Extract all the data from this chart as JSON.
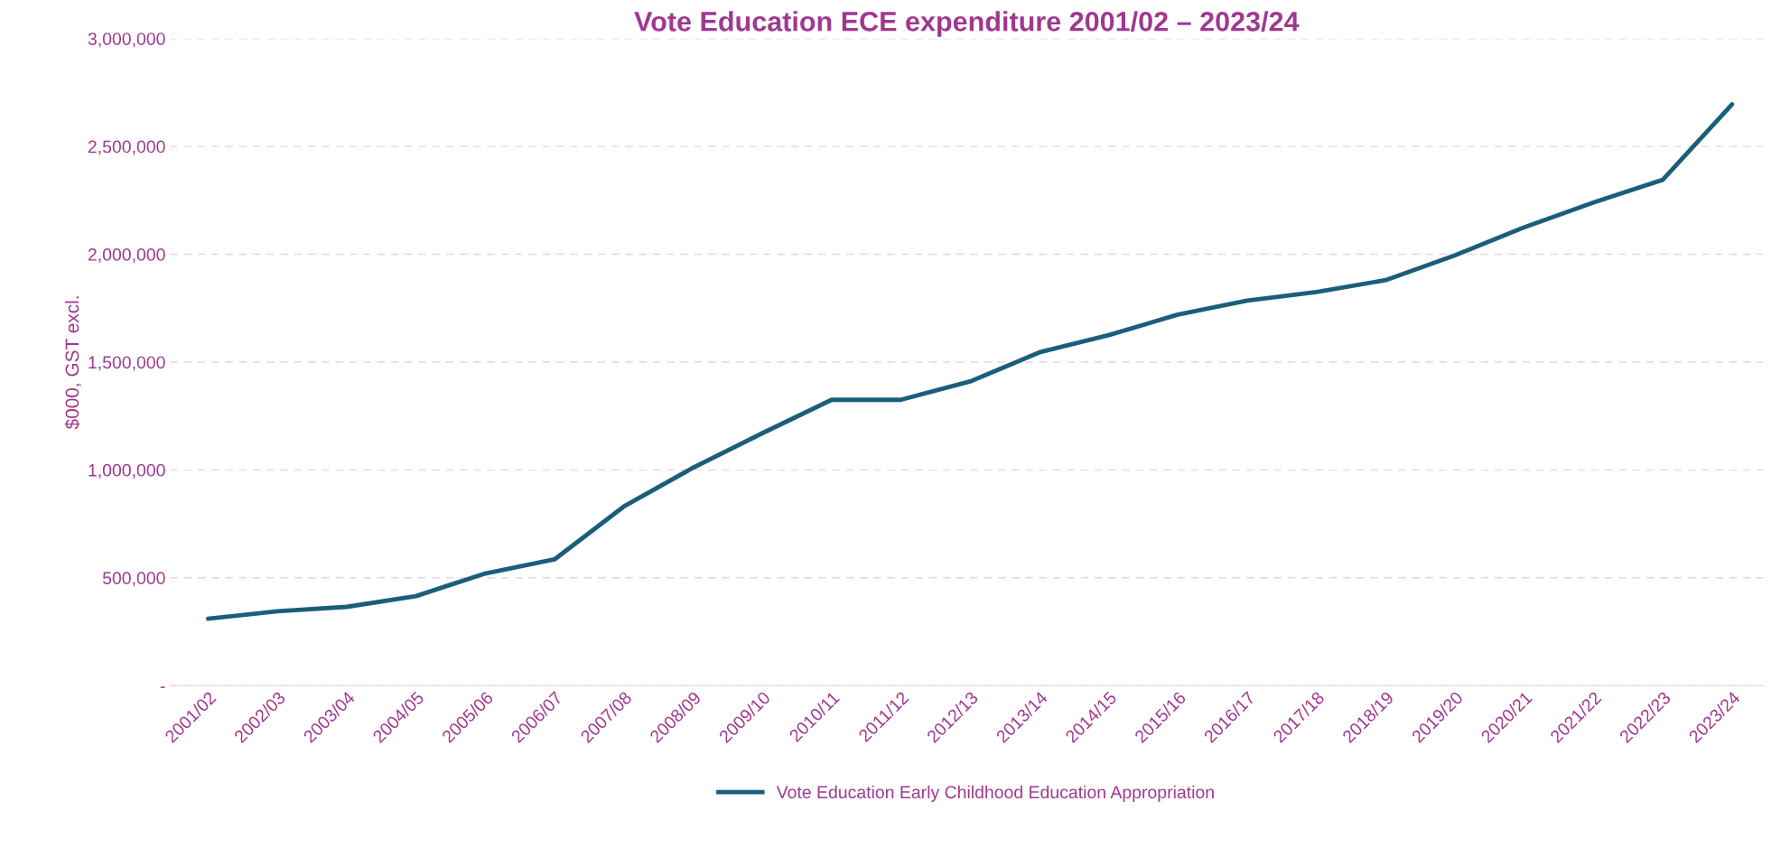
{
  "chart_data": {
    "type": "line",
    "title": "Vote Education ECE expenditure 2001/02 – 2023/24",
    "ylabel": "$000, GST excl.",
    "categories": [
      "2001/02",
      "2002/03",
      "2003/04",
      "2004/05",
      "2005/06",
      "2006/07",
      "2007/08",
      "2008/09",
      "2009/10",
      "2010/11",
      "2011/12",
      "2012/13",
      "2013/14",
      "2014/15",
      "2015/16",
      "2016/17",
      "2017/18",
      "2018/19",
      "2019/20",
      "2020/21",
      "2021/22",
      "2022/23",
      "2023/24"
    ],
    "series": [
      {
        "name": "Vote Education Early Childhood Education Appropriation",
        "color": "#1b5e7b",
        "values": [
          310000,
          345000,
          365000,
          415000,
          520000,
          585000,
          830000,
          1010000,
          1170000,
          1325000,
          1325000,
          1410000,
          1545000,
          1625000,
          1720000,
          1785000,
          1825000,
          1880000,
          1995000,
          2125000,
          2240000,
          2345000,
          2695000
        ]
      }
    ],
    "ylim": [
      0,
      3000000
    ],
    "yticks": [
      {
        "value": 0,
        "label": "-"
      },
      {
        "value": 500000,
        "label": "500,000"
      },
      {
        "value": 1000000,
        "label": "1,000,000"
      },
      {
        "value": 1500000,
        "label": "1,500,000"
      },
      {
        "value": 2000000,
        "label": "2,000,000"
      },
      {
        "value": 2500000,
        "label": "2,500,000"
      },
      {
        "value": 3000000,
        "label": "3,000,000"
      }
    ],
    "grid": "y",
    "legend": "bottom",
    "marker": "none",
    "line_style": "solid"
  }
}
